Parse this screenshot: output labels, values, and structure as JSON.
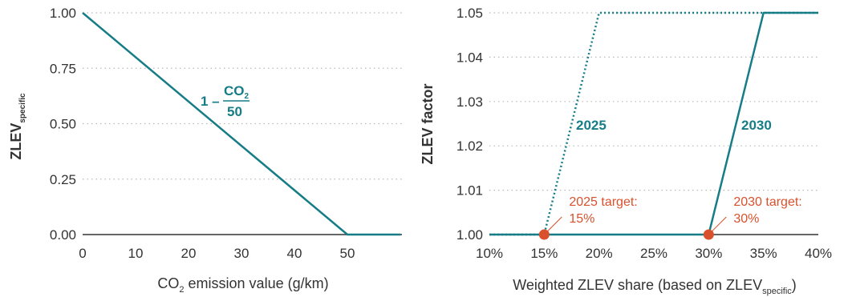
{
  "colors": {
    "line": "#167d86",
    "target": "#d9512c",
    "grid": "#b9b9b9",
    "axis": "#333333"
  },
  "chart_data": [
    {
      "type": "line",
      "title": "",
      "xlabel": {
        "main": "CO",
        "sub": "2",
        "rest": " emission value (g/km)"
      },
      "ylabel": {
        "main": "ZLEV",
        "sub": "specific"
      },
      "xlim": [
        0,
        60
      ],
      "ylim": [
        0,
        1
      ],
      "xticks": [
        0,
        10,
        20,
        30,
        40,
        50
      ],
      "xtick_labels": [
        "0",
        "10",
        "20",
        "30",
        "40",
        "50"
      ],
      "yticks": [
        0,
        0.25,
        0.5,
        0.75,
        1
      ],
      "ytick_labels": [
        "0.00",
        "0.25",
        "0.50",
        "0.75",
        "1.00"
      ],
      "grid": "horizontal dotted",
      "series": [
        {
          "style": "solid",
          "x": [
            0,
            50,
            60
          ],
          "y": [
            1.0,
            0.0,
            0.0
          ]
        }
      ],
      "annotation": {
        "prefix": "1 – ",
        "numerator": "CO",
        "numerator_sub": "2",
        "denominator": "50"
      }
    },
    {
      "type": "line",
      "title": "",
      "xlabel": {
        "main": "Weighted ZLEV share (based on ZLEV",
        "sub": "specific",
        "rest": ")"
      },
      "ylabel": {
        "main": "ZLEV factor"
      },
      "xlim": [
        10,
        40
      ],
      "ylim": [
        1.0,
        1.05
      ],
      "xticks": [
        10,
        15,
        20,
        25,
        30,
        35,
        40
      ],
      "xtick_labels": [
        "10%",
        "15%",
        "20%",
        "25%",
        "30%",
        "35%",
        "40%"
      ],
      "yticks": [
        1.0,
        1.01,
        1.02,
        1.03,
        1.04,
        1.05
      ],
      "ytick_labels": [
        "1.00",
        "1.01",
        "1.02",
        "1.03",
        "1.04",
        "1.05"
      ],
      "grid": "horizontal dotted",
      "series": [
        {
          "name": "2025",
          "style": "dotted",
          "x": [
            10,
            15,
            20,
            40
          ],
          "y": [
            1.0,
            1.0,
            1.05,
            1.05
          ]
        },
        {
          "name": "2030",
          "style": "solid",
          "x": [
            10,
            30,
            35,
            40
          ],
          "y": [
            1.0,
            1.0,
            1.05,
            1.05
          ]
        }
      ],
      "targets": [
        {
          "x": 15,
          "y": 1.0,
          "line1": "2025 target:",
          "line2": "15%"
        },
        {
          "x": 30,
          "y": 1.0,
          "line1": "2030 target:",
          "line2": "30%"
        }
      ]
    }
  ]
}
